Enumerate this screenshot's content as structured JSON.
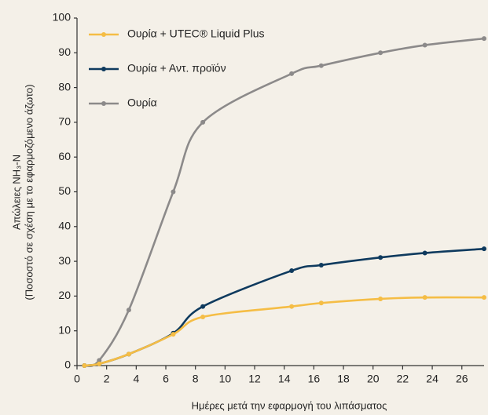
{
  "chart_data": {
    "type": "line",
    "y_label": [
      "Απώλειες NH₃-N",
      "(Ποσοστό σε σχέση με το εφαρμοζόμενο άζωτο)"
    ],
    "x_label": "Ημέρες μετά την εφαρμογή του λιπάσματος",
    "x": [
      0.5,
      1.5,
      3.5,
      6.5,
      8.5,
      14.5,
      16.5,
      20.5,
      23.5,
      27.5
    ],
    "series": [
      {
        "name": "Ουρία + UTEC® Liquid Plus",
        "color": "#f5bd45",
        "values": [
          0,
          0.5,
          3.3,
          9,
          14,
          17,
          18,
          19.2,
          19.6,
          19.6
        ]
      },
      {
        "name": "Ουρία + Αντ. προϊόν",
        "color": "#0e3a5e",
        "values": [
          0,
          0.5,
          3.3,
          9.3,
          17,
          27.3,
          28.9,
          31.1,
          32.4,
          33.6
        ]
      },
      {
        "name": "Ουρία",
        "color": "#8c8a8a",
        "values": [
          0,
          1.5,
          16,
          50,
          70,
          84,
          86.3,
          90,
          92.2,
          94.1
        ]
      }
    ],
    "xlim": [
      0,
      27.5
    ],
    "xticks": [
      0,
      2,
      4,
      6,
      8,
      10,
      12,
      14,
      16,
      18,
      20,
      22,
      24,
      26
    ],
    "ylim": [
      0,
      100
    ],
    "yticks": [
      0,
      10,
      20,
      30,
      40,
      50,
      60,
      70,
      80,
      90,
      100
    ],
    "grid": false,
    "legend": "upper left"
  }
}
